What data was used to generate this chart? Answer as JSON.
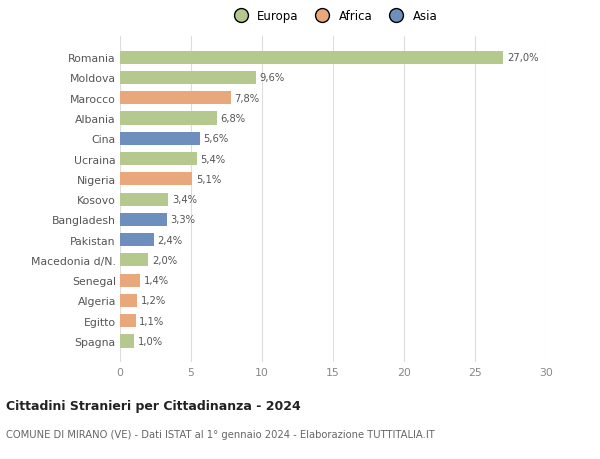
{
  "countries": [
    "Romania",
    "Moldova",
    "Marocco",
    "Albania",
    "Cina",
    "Ucraina",
    "Nigeria",
    "Kosovo",
    "Bangladesh",
    "Pakistan",
    "Macedonia d/N.",
    "Senegal",
    "Algeria",
    "Egitto",
    "Spagna"
  ],
  "values": [
    27.0,
    9.6,
    7.8,
    6.8,
    5.6,
    5.4,
    5.1,
    3.4,
    3.3,
    2.4,
    2.0,
    1.4,
    1.2,
    1.1,
    1.0
  ],
  "labels": [
    "27,0%",
    "9,6%",
    "7,8%",
    "6,8%",
    "5,6%",
    "5,4%",
    "5,1%",
    "3,4%",
    "3,3%",
    "2,4%",
    "2,0%",
    "1,4%",
    "1,2%",
    "1,1%",
    "1,0%"
  ],
  "colors": [
    "#b5c98e",
    "#b5c98e",
    "#e8a87c",
    "#b5c98e",
    "#6e8fbd",
    "#b5c98e",
    "#e8a87c",
    "#b5c98e",
    "#6e8fbd",
    "#6e8fbd",
    "#b5c98e",
    "#e8a87c",
    "#e8a87c",
    "#e8a87c",
    "#b5c98e"
  ],
  "continent_colors": {
    "Europa": "#b5c98e",
    "Africa": "#e8a87c",
    "Asia": "#6e8fbd"
  },
  "title": "Cittadini Stranieri per Cittadinanza - 2024",
  "subtitle": "COMUNE DI MIRANO (VE) - Dati ISTAT al 1° gennaio 2024 - Elaborazione TUTTITALIA.IT",
  "xlim": [
    0,
    30
  ],
  "xticks": [
    0,
    5,
    10,
    15,
    20,
    25,
    30
  ],
  "bg_color": "#ffffff",
  "grid_color": "#dddddd",
  "bar_height": 0.65
}
